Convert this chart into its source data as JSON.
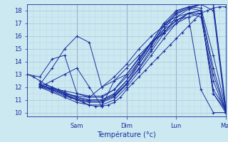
{
  "xlabel": "Température (°c)",
  "bg_color": "#cce8f0",
  "line_color": "#1a2f9e",
  "grid_major_color": "#a8c8d8",
  "grid_minor_color": "#b8d8e8",
  "ylim": [
    9.7,
    18.5
  ],
  "yticks": [
    10,
    11,
    12,
    13,
    14,
    15,
    16,
    17,
    18
  ],
  "xlim": [
    0.0,
    8.0
  ],
  "xtick_day_positions": [
    2.0,
    4.0,
    6.0,
    8.0
  ],
  "xtick_day_labels": [
    "Sam",
    "Dim",
    "Lun",
    "Mar"
  ],
  "figsize": [
    3.2,
    2.0
  ],
  "dpi": 100,
  "series": [
    {
      "x": [
        0.0,
        0.25,
        0.5,
        0.75,
        1.0,
        1.25,
        1.5,
        1.75,
        2.0,
        2.25,
        2.5,
        2.75,
        3.0,
        3.25,
        3.5,
        3.75,
        4.0,
        4.25,
        4.5,
        4.75,
        5.0,
        5.25,
        5.5,
        5.75,
        6.0,
        6.25,
        6.5,
        6.75,
        7.0,
        7.25,
        7.5,
        7.75,
        8.0
      ],
      "y": [
        13.0,
        12.8,
        12.5,
        12.2,
        12.0,
        11.8,
        11.5,
        11.2,
        11.0,
        10.8,
        10.6,
        10.5,
        10.5,
        10.6,
        10.8,
        11.2,
        11.8,
        12.3,
        12.8,
        13.3,
        13.8,
        14.3,
        14.8,
        15.3,
        15.8,
        16.3,
        16.8,
        17.3,
        17.8,
        18.0,
        18.2,
        18.3,
        18.3
      ]
    },
    {
      "x": [
        0.5,
        1.0,
        1.5,
        2.0,
        2.5,
        3.0,
        3.5,
        4.0,
        4.5,
        5.0,
        5.5,
        6.0,
        6.5,
        7.0,
        7.5,
        8.0
      ],
      "y": [
        12.2,
        11.8,
        11.4,
        11.0,
        10.8,
        10.8,
        11.2,
        12.2,
        13.5,
        15.0,
        16.5,
        17.8,
        18.2,
        18.5,
        18.5,
        10.2
      ]
    },
    {
      "x": [
        0.5,
        1.0,
        1.5,
        2.0,
        2.5,
        3.0,
        3.5,
        4.0,
        4.5,
        5.0,
        5.5,
        6.0,
        6.5,
        7.0,
        7.5,
        8.0
      ],
      "y": [
        12.2,
        11.9,
        11.5,
        11.2,
        11.0,
        11.0,
        11.5,
        12.5,
        13.8,
        15.2,
        16.8,
        17.9,
        18.3,
        18.5,
        18.5,
        10.5
      ]
    },
    {
      "x": [
        0.5,
        1.0,
        1.5,
        2.0,
        2.5,
        3.0,
        3.5,
        4.0,
        4.5,
        5.0,
        5.5,
        6.0,
        6.5,
        7.0,
        7.5,
        8.0
      ],
      "y": [
        12.1,
        11.7,
        11.3,
        11.0,
        10.9,
        10.9,
        11.3,
        12.3,
        13.4,
        14.8,
        16.2,
        17.5,
        18.1,
        18.5,
        18.0,
        10.0
      ]
    },
    {
      "x": [
        0.5,
        1.0,
        1.5,
        2.0,
        2.5,
        3.0,
        3.5,
        4.0,
        4.5,
        5.0,
        5.5,
        6.0,
        6.5,
        7.0,
        7.5,
        8.0
      ],
      "y": [
        12.3,
        12.0,
        11.6,
        11.2,
        11.0,
        11.0,
        11.4,
        12.5,
        14.0,
        15.5,
        17.0,
        18.0,
        18.3,
        18.2,
        14.5,
        10.3
      ]
    },
    {
      "x": [
        0.5,
        1.0,
        1.5,
        2.0,
        2.5,
        3.0,
        3.5,
        4.0,
        4.5,
        5.0,
        5.5,
        6.0,
        6.5,
        7.0,
        7.5,
        8.0
      ],
      "y": [
        12.2,
        11.8,
        11.4,
        11.1,
        10.9,
        10.9,
        11.3,
        12.2,
        13.8,
        15.3,
        16.8,
        17.7,
        18.2,
        18.0,
        13.5,
        10.1
      ]
    },
    {
      "x": [
        0.5,
        1.0,
        1.5,
        2.0,
        2.5,
        3.0,
        3.5,
        4.0,
        4.5,
        5.0,
        5.5,
        6.0,
        6.5,
        7.0,
        7.5,
        8.0
      ],
      "y": [
        12.0,
        11.6,
        11.2,
        10.8,
        10.6,
        10.6,
        11.0,
        12.0,
        13.2,
        14.5,
        15.8,
        17.0,
        17.8,
        18.0,
        13.0,
        10.1
      ]
    },
    {
      "x": [
        0.5,
        1.0,
        1.5,
        2.0,
        2.5,
        3.0,
        3.5,
        4.0,
        4.5,
        5.0,
        5.5,
        6.0,
        6.5,
        7.0,
        7.5,
        8.0
      ],
      "y": [
        12.1,
        11.9,
        11.7,
        11.5,
        11.3,
        11.3,
        11.8,
        12.8,
        14.0,
        15.5,
        17.0,
        17.5,
        17.8,
        17.5,
        12.5,
        10.0
      ]
    },
    {
      "x": [
        0.5,
        1.0,
        1.5,
        2.0,
        2.5,
        3.0,
        3.5,
        4.0,
        4.5,
        5.0,
        5.5,
        6.0,
        6.5,
        7.0,
        7.5,
        8.0
      ],
      "y": [
        12.0,
        12.5,
        13.0,
        13.5,
        12.0,
        10.5,
        12.5,
        13.0,
        14.2,
        15.5,
        16.3,
        17.2,
        17.8,
        18.0,
        11.5,
        10.2
      ]
    },
    {
      "x": [
        0.5,
        1.0,
        1.5,
        2.0,
        2.5,
        3.0,
        3.5,
        4.0,
        4.5,
        5.0,
        5.5,
        6.0,
        6.5,
        7.0,
        7.5,
        8.0
      ],
      "y": [
        12.2,
        13.5,
        15.0,
        16.0,
        15.5,
        12.0,
        12.5,
        13.5,
        14.5,
        15.5,
        16.2,
        17.0,
        17.5,
        17.8,
        11.8,
        10.3
      ]
    },
    {
      "x": [
        0.5,
        1.0,
        1.5,
        2.0,
        2.5,
        3.0,
        3.5,
        4.0,
        4.5,
        5.0,
        5.5,
        6.0,
        6.5,
        7.0,
        7.5,
        8.0
      ],
      "y": [
        12.0,
        11.8,
        11.5,
        11.3,
        11.2,
        11.2,
        11.8,
        13.0,
        14.3,
        15.5,
        16.5,
        17.2,
        17.8,
        17.8,
        11.5,
        10.0
      ]
    },
    {
      "x": [
        0.0,
        0.5,
        1.0,
        1.5,
        2.0,
        2.5,
        3.0,
        3.5,
        4.0,
        4.5,
        5.0,
        5.5,
        6.0,
        6.5,
        7.0,
        7.5,
        8.0
      ],
      "y": [
        13.0,
        12.8,
        14.2,
        14.5,
        11.5,
        11.2,
        12.0,
        12.8,
        13.8,
        15.0,
        16.0,
        16.8,
        17.3,
        17.5,
        11.8,
        10.0,
        10.0
      ]
    }
  ],
  "vlines_x": [
    2.0,
    4.0,
    6.0,
    8.0
  ],
  "vline_color": "#8888bb"
}
